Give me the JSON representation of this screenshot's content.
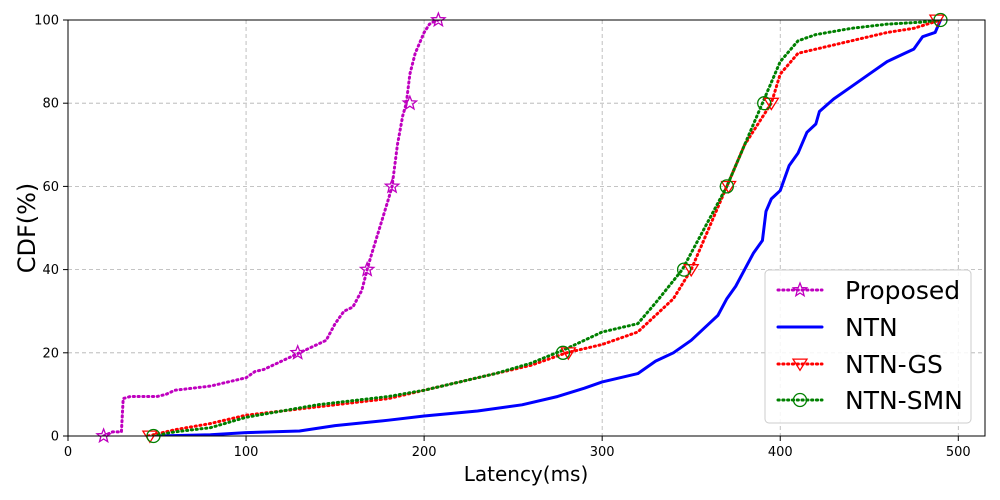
{
  "chart_data": {
    "type": "line",
    "title": "",
    "xlabel": "Latency(ms)",
    "ylabel": "CDF(%)",
    "xlim": [
      0,
      515
    ],
    "ylim": [
      0,
      100
    ],
    "xticks": [
      0,
      100,
      200,
      300,
      400,
      500
    ],
    "yticks": [
      0,
      20,
      40,
      60,
      80,
      100
    ],
    "grid": true,
    "legend_position": "lower-right",
    "series": [
      {
        "name": "Proposed",
        "color": "#bf00bf",
        "line_style": "dotted",
        "marker": "star",
        "x": [
          20,
          25,
          30,
          31,
          35,
          40,
          50,
          55,
          60,
          70,
          80,
          90,
          100,
          105,
          110,
          115,
          120,
          125,
          130,
          140,
          145,
          150,
          155,
          160,
          165,
          168,
          170,
          175,
          180,
          182,
          185,
          188,
          190,
          192,
          195,
          200,
          203,
          205,
          208
        ],
        "y": [
          0,
          1,
          1,
          9,
          9.5,
          9.5,
          9.5,
          10,
          11,
          11.5,
          12,
          13,
          14,
          15.5,
          16,
          17,
          18,
          19,
          20,
          22,
          23,
          27,
          30,
          31,
          35,
          40,
          43,
          50,
          57,
          60,
          70,
          77,
          80,
          87,
          92,
          97,
          99,
          99.5,
          100
        ],
        "marker_x": [
          20,
          129,
          168,
          182,
          192,
          208
        ],
        "marker_y": [
          0,
          20,
          40,
          60,
          80,
          100
        ]
      },
      {
        "name": "NTN",
        "color": "#0000ff",
        "line_style": "solid",
        "marker": "none",
        "x": [
          50,
          80,
          100,
          130,
          150,
          180,
          200,
          230,
          255,
          275,
          290,
          300,
          320,
          330,
          340,
          350,
          360,
          365,
          370,
          375,
          380,
          385,
          390,
          392,
          395,
          400,
          405,
          410,
          412,
          415,
          420,
          422,
          430,
          440,
          450,
          460,
          470,
          475,
          480,
          487,
          490
        ],
        "y": [
          0,
          0.3,
          0.8,
          1.2,
          2.5,
          3.8,
          4.8,
          6,
          7.5,
          9.5,
          11.5,
          13,
          15,
          18,
          20,
          23,
          27,
          29,
          33,
          36,
          40,
          44,
          47,
          54,
          57,
          59,
          65,
          68,
          70,
          73,
          75,
          78,
          81,
          84,
          87,
          90,
          92,
          93,
          96,
          97,
          100
        ]
      },
      {
        "name": "NTN-GS",
        "color": "#ff0000",
        "line_style": "dotted",
        "marker": "triangle_down",
        "x": [
          45,
          60,
          80,
          100,
          120,
          140,
          160,
          180,
          200,
          220,
          240,
          260,
          280,
          300,
          320,
          330,
          340,
          350,
          360,
          370,
          380,
          395,
          400,
          410,
          420,
          440,
          460,
          475,
          490
        ],
        "y": [
          0,
          1.5,
          3,
          5,
          6,
          7,
          8,
          9,
          11,
          13,
          15,
          17,
          20,
          22,
          25,
          29,
          33,
          40,
          50,
          60,
          70,
          80,
          87,
          92,
          93,
          95,
          97,
          98,
          100
        ],
        "marker_x": [
          46,
          281,
          350,
          371,
          395,
          488
        ],
        "marker_y": [
          0,
          20,
          40,
          60,
          80,
          100
        ]
      },
      {
        "name": "NTN-SMN",
        "color": "#008000",
        "line_style": "dotted",
        "marker": "circle",
        "x": [
          48,
          60,
          80,
          100,
          120,
          140,
          160,
          180,
          200,
          220,
          240,
          260,
          280,
          300,
          320,
          330,
          345,
          360,
          370,
          380,
          390,
          400,
          410,
          420,
          440,
          460,
          480,
          490
        ],
        "y": [
          0,
          1,
          2,
          4.5,
          6,
          7.5,
          8.5,
          9.5,
          11,
          13,
          15,
          17.5,
          21,
          25,
          27,
          32,
          40,
          52,
          60,
          70,
          80,
          90,
          95,
          96.5,
          98,
          99,
          99.5,
          100
        ],
        "marker_x": [
          48,
          278,
          346,
          370,
          391,
          490
        ],
        "marker_y": [
          0,
          20,
          40,
          60,
          80,
          100
        ]
      }
    ]
  }
}
